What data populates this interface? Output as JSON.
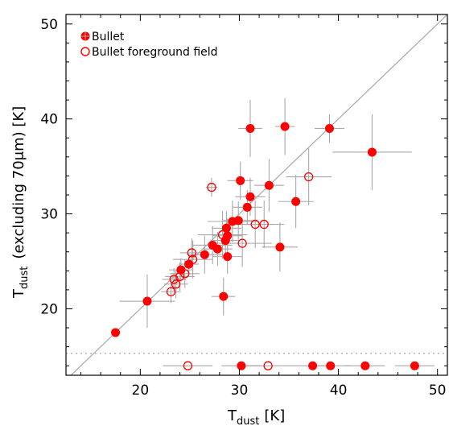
{
  "chart_data": {
    "type": "scatter",
    "title": "",
    "xlabel": "T_dust [K]",
    "xlabel_main": "T",
    "xlabel_sub": "dust",
    "xlabel_unit": "[K]",
    "ylabel": "T_dust (excluding 70μm) [K]",
    "ylabel_main": "T",
    "ylabel_sub": "dust",
    "ylabel_rest": "(excluding 70μm) [K]",
    "xlim": [
      12.5,
      51
    ],
    "ylim": [
      13,
      51
    ],
    "xticks": [
      20,
      30,
      40,
      50
    ],
    "yticks": [
      20,
      30,
      40,
      50
    ],
    "grid": false,
    "legend_position": "top-left",
    "colors": {
      "marker": "#ff0000",
      "errorbar": "#a8a8a8",
      "one_to_one": "#a8a8a8",
      "limit_line": "#a8a8a8",
      "axes": "#000000"
    },
    "one_to_one_line": true,
    "limit_line_y": 15.3,
    "series": [
      {
        "name": "Bullet",
        "marker": "filled-circle",
        "points": [
          {
            "x": 17.5,
            "y": 17.5,
            "xerr": 0,
            "yerr": 0
          },
          {
            "x": 20.7,
            "y": 20.8,
            "xerr": 2.8,
            "yerr": 2.8
          },
          {
            "x": 24.1,
            "y": 24.1,
            "xerr": 1.2,
            "yerr": 1.2
          },
          {
            "x": 24.9,
            "y": 24.7,
            "xerr": 1.0,
            "yerr": 1.0
          },
          {
            "x": 26.5,
            "y": 25.7,
            "xerr": 1.8,
            "yerr": 2.0
          },
          {
            "x": 27.3,
            "y": 26.7,
            "xerr": 2.0,
            "yerr": 2.0
          },
          {
            "x": 27.8,
            "y": 26.3,
            "xerr": 1.5,
            "yerr": 1.8
          },
          {
            "x": 28.4,
            "y": 21.3,
            "xerr": 1.2,
            "yerr": 2.0
          },
          {
            "x": 28.6,
            "y": 27.2,
            "xerr": 1.5,
            "yerr": 1.8
          },
          {
            "x": 28.7,
            "y": 28.5,
            "xerr": 1.5,
            "yerr": 1.8
          },
          {
            "x": 28.8,
            "y": 27.7,
            "xerr": 1.5,
            "yerr": 1.8
          },
          {
            "x": 28.8,
            "y": 25.5,
            "xerr": 1.5,
            "yerr": 1.8
          },
          {
            "x": 29.3,
            "y": 29.2,
            "xerr": 2.5,
            "yerr": 2.2
          },
          {
            "x": 29.9,
            "y": 29.3,
            "xerr": 1.5,
            "yerr": 2.0
          },
          {
            "x": 30.1,
            "y": 33.5,
            "xerr": 1.3,
            "yerr": 2.0
          },
          {
            "x": 30.8,
            "y": 30.7,
            "xerr": 1.5,
            "yerr": 1.8
          },
          {
            "x": 31.1,
            "y": 31.8,
            "xerr": 1.5,
            "yerr": 2.0
          },
          {
            "x": 31.1,
            "y": 39.0,
            "xerr": 1.2,
            "yerr": 3.0
          },
          {
            "x": 33.0,
            "y": 33.0,
            "xerr": 1.5,
            "yerr": 2.8
          },
          {
            "x": 34.1,
            "y": 26.5,
            "xerr": 1.8,
            "yerr": 2.6
          },
          {
            "x": 34.6,
            "y": 39.2,
            "xerr": 1.0,
            "yerr": 3.0
          },
          {
            "x": 35.7,
            "y": 31.3,
            "xerr": 1.8,
            "yerr": 2.8
          },
          {
            "x": 39.1,
            "y": 39.0,
            "xerr": 1.5,
            "yerr": 1.5
          },
          {
            "x": 43.4,
            "y": 36.5,
            "xerr": 4.0,
            "yerr": 4.0
          },
          {
            "x": 30.2,
            "y": 14.0,
            "xerr": 2.0,
            "yerr": 0
          },
          {
            "x": 37.4,
            "y": 14.0,
            "xerr": 2.0,
            "yerr": 0
          },
          {
            "x": 39.2,
            "y": 14.0,
            "xerr": 2.0,
            "yerr": 0
          },
          {
            "x": 42.7,
            "y": 14.0,
            "xerr": 2.0,
            "yerr": 0
          },
          {
            "x": 47.7,
            "y": 14.0,
            "xerr": 2.0,
            "yerr": 0
          }
        ]
      },
      {
        "name": "Bullet foreground field",
        "marker": "open-circle",
        "points": [
          {
            "x": 23.1,
            "y": 21.8,
            "xerr": 1.0,
            "yerr": 1.2
          },
          {
            "x": 23.4,
            "y": 23.1,
            "xerr": 1.2,
            "yerr": 1.2
          },
          {
            "x": 23.6,
            "y": 22.6,
            "xerr": 1.2,
            "yerr": 1.5
          },
          {
            "x": 24.0,
            "y": 23.4,
            "xerr": 1.5,
            "yerr": 1.5
          },
          {
            "x": 24.5,
            "y": 23.7,
            "xerr": 1.5,
            "yerr": 1.5
          },
          {
            "x": 25.2,
            "y": 25.9,
            "xerr": 1.2,
            "yerr": 1.5
          },
          {
            "x": 25.3,
            "y": 25.2,
            "xerr": 2.0,
            "yerr": 2.0
          },
          {
            "x": 27.2,
            "y": 32.8,
            "xerr": 0.6,
            "yerr": 1.0
          },
          {
            "x": 28.3,
            "y": 27.8,
            "xerr": 2.5,
            "yerr": 2.5
          },
          {
            "x": 30.3,
            "y": 26.9,
            "xerr": 3.0,
            "yerr": 2.5
          },
          {
            "x": 31.6,
            "y": 28.9,
            "xerr": 2.0,
            "yerr": 2.5
          },
          {
            "x": 32.5,
            "y": 28.9,
            "xerr": 2.0,
            "yerr": 2.5
          },
          {
            "x": 37.0,
            "y": 33.9,
            "xerr": 2.3,
            "yerr": 3.0
          },
          {
            "x": 24.8,
            "y": 14.0,
            "xerr": 2.5,
            "yerr": 0
          },
          {
            "x": 32.9,
            "y": 14.0,
            "xerr": 2.5,
            "yerr": 0
          }
        ]
      }
    ]
  }
}
